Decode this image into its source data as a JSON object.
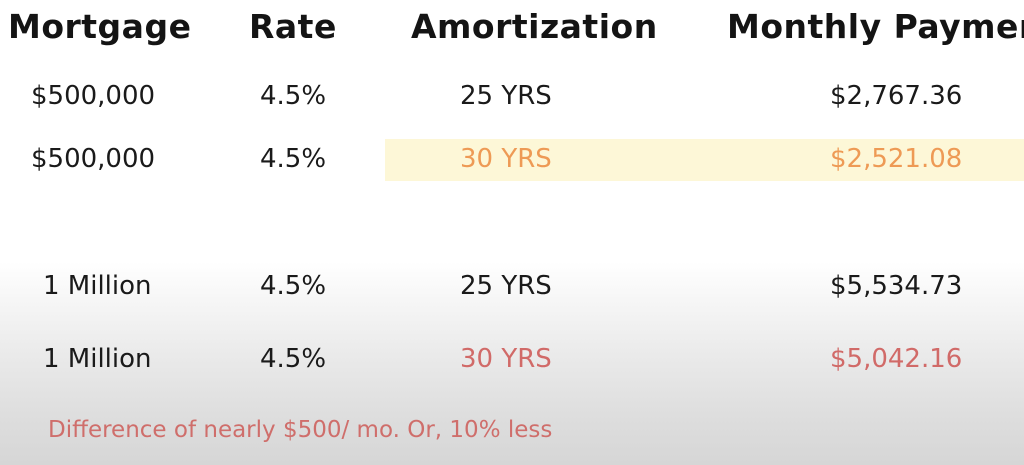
{
  "headers": {
    "mortgage": "Mortgage",
    "rate": "Rate",
    "amortization": "Amortization",
    "monthly_payment": "Monthly Paymen"
  },
  "rows": [
    {
      "mortgage": "$500,000",
      "rate": "4.5%",
      "amortization": "25 YRS",
      "payment": "$2,767.36"
    },
    {
      "mortgage": "$500,000",
      "rate": "4.5%",
      "amortization": "30 YRS",
      "payment": "$2,521.08"
    },
    {
      "mortgage": "1 Million",
      "rate": "4.5%",
      "amortization": "25 YRS",
      "payment": "$5,534.73"
    },
    {
      "mortgage": "1 Million",
      "rate": "4.5%",
      "amortization": "30 YRS",
      "payment": "$5,042.16"
    }
  ],
  "note": "Difference of nearly $500/ mo. Or, 10% less",
  "colors": {
    "highlight_band": "#fdf7d7",
    "accent_orange": "#ee9a55",
    "accent_red": "#d16a68",
    "text": "#161616"
  }
}
